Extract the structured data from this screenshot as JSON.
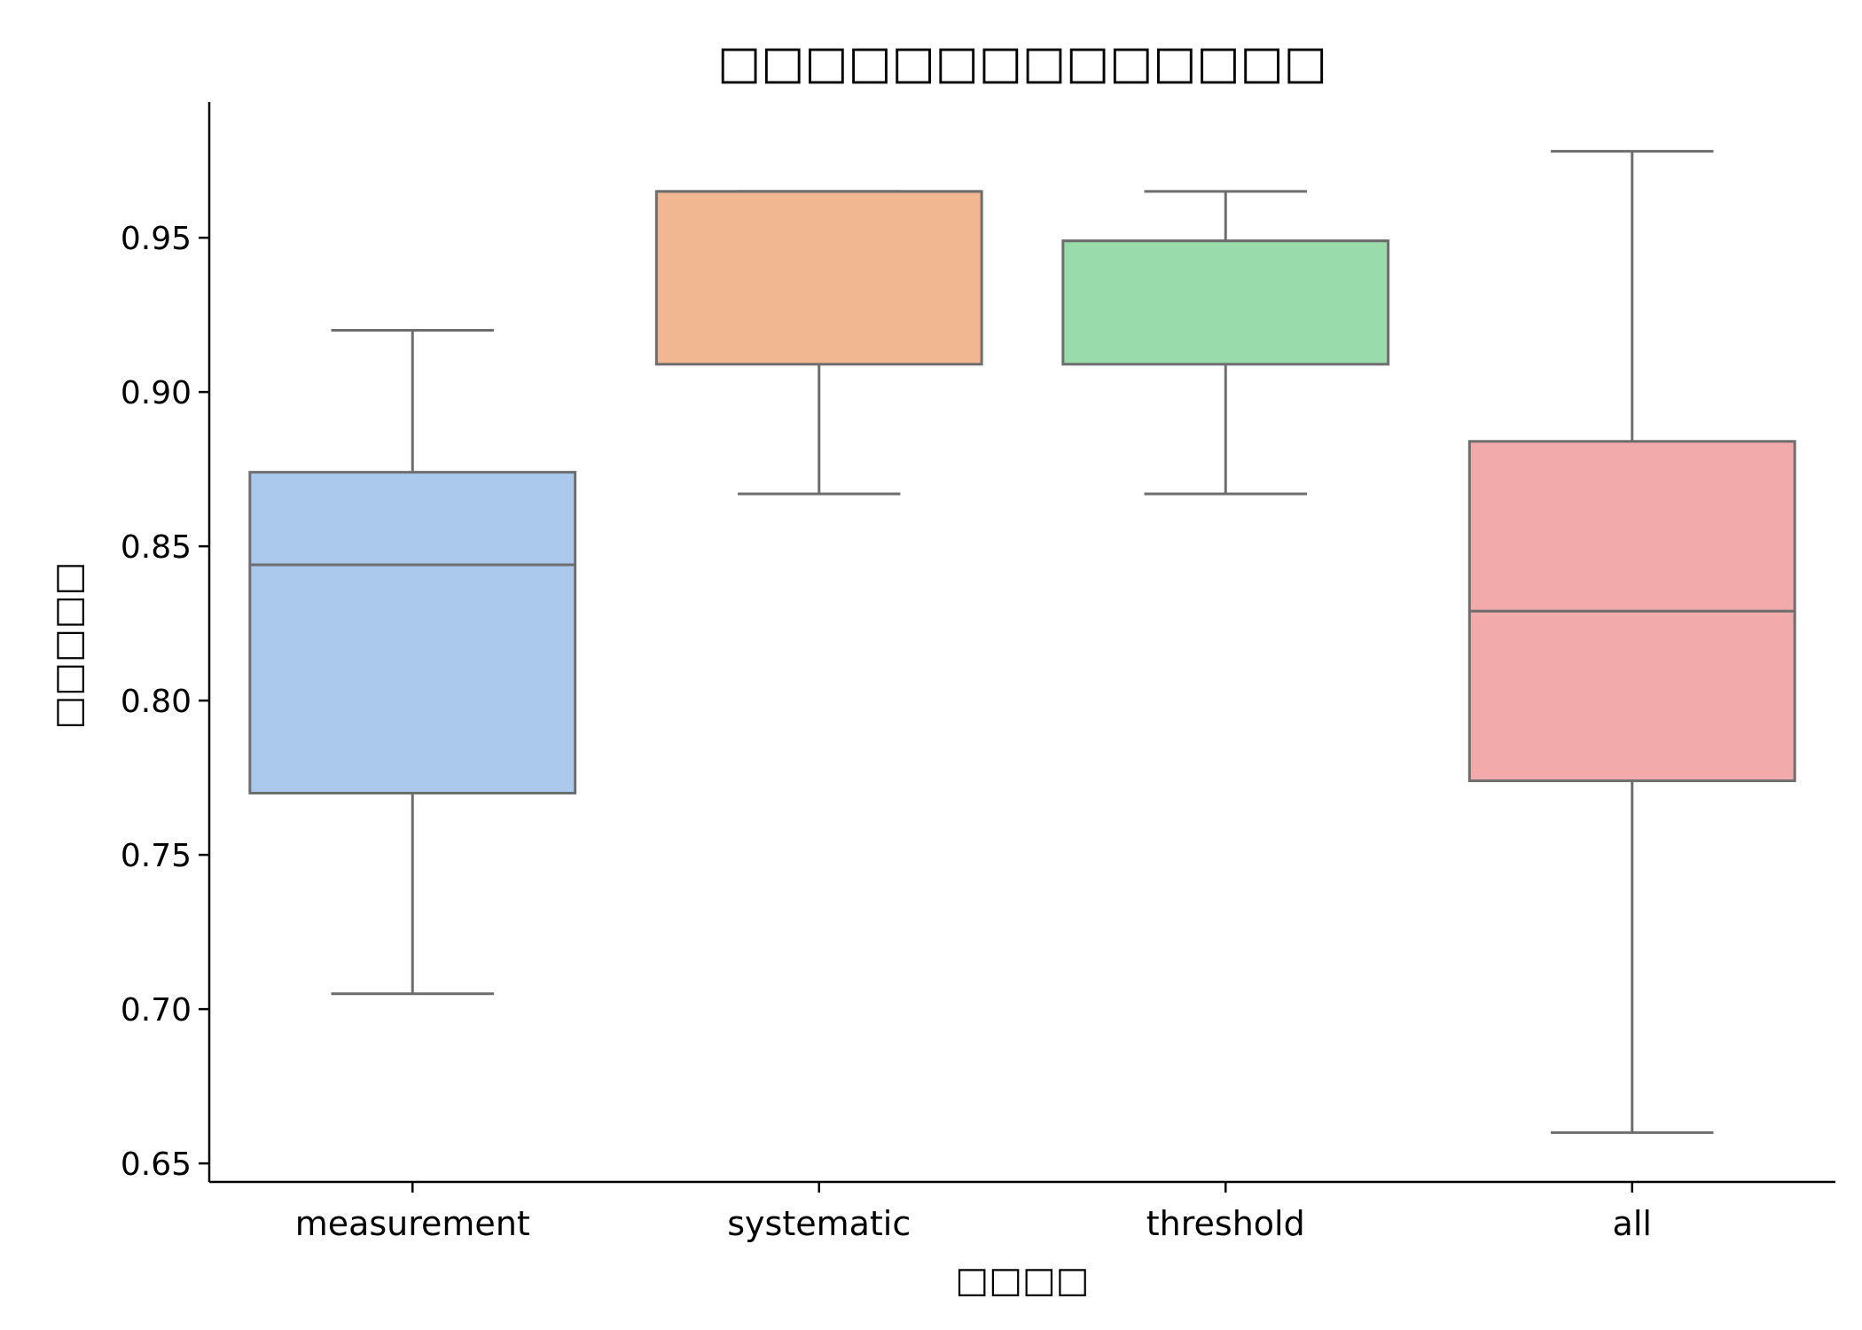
{
  "chart_data": {
    "type": "box",
    "title": "□□□□□□□□□□□□□□",
    "xlabel": "□□□□",
    "ylabel": "□□□□□",
    "ylim": [
      0.644,
      0.994
    ],
    "yticks": [
      "0.65",
      "0.70",
      "0.75",
      "0.80",
      "0.85",
      "0.90",
      "0.95"
    ],
    "grid": false,
    "categories": [
      "measurement",
      "systematic",
      "threshold",
      "all"
    ],
    "boxes": [
      {
        "category": "measurement",
        "whisker_low": 0.705,
        "q1": 0.77,
        "median": 0.844,
        "q3": 0.874,
        "whisker_high": 0.92,
        "color": "#abc9ed"
      },
      {
        "category": "systematic",
        "whisker_low": 0.867,
        "q1": 0.909,
        "median": 0.965,
        "q3": 0.965,
        "whisker_high": 0.965,
        "color": "#f1b791"
      },
      {
        "category": "threshold",
        "whisker_low": 0.867,
        "q1": 0.909,
        "median": 0.949,
        "q3": 0.949,
        "whisker_high": 0.965,
        "color": "#99dbaa"
      },
      {
        "category": "all",
        "whisker_low": 0.66,
        "q1": 0.774,
        "median": 0.829,
        "q3": 0.884,
        "whisker_high": 0.978,
        "color": "#f2abaa"
      }
    ],
    "line_color": "#6e6e6e",
    "axis_color": "#000000"
  }
}
